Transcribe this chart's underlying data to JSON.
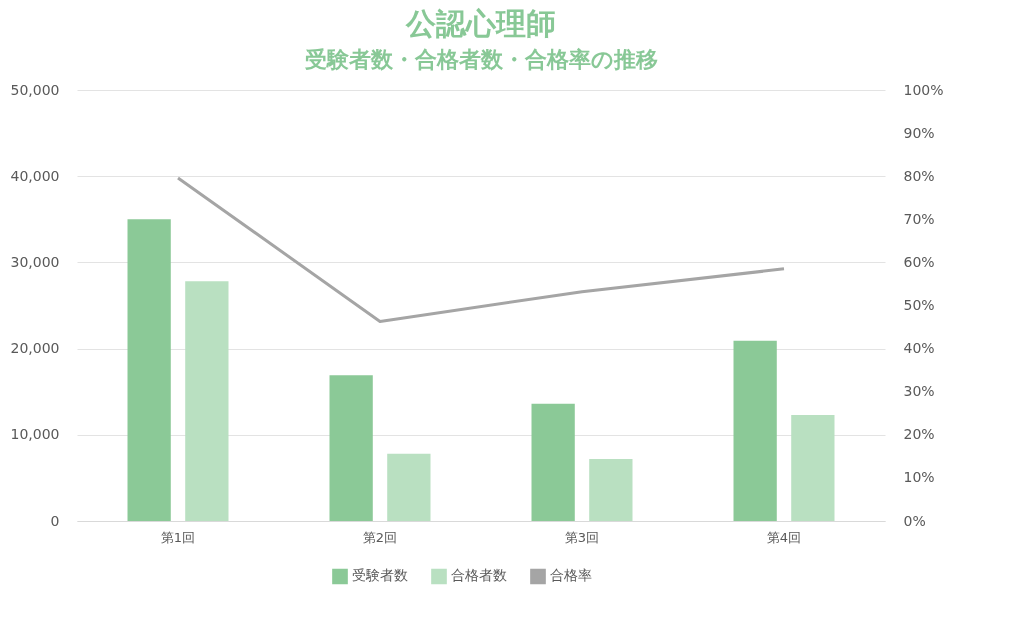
{
  "chart_data": {
    "type": "bar",
    "title": "公認心理師",
    "subtitle": "受験者数・合格者数・合格率の推移",
    "categories": [
      "第1回",
      "第2回",
      "第3回",
      "第4回"
    ],
    "series": [
      {
        "name": "受験者数",
        "color": "#8bc997",
        "values": [
          35000,
          16900,
          13600,
          20900
        ]
      },
      {
        "name": "合格者数",
        "color": "#b9e0c1",
        "values": [
          27800,
          7800,
          7200,
          12300
        ]
      },
      {
        "name": "合格率",
        "type": "line",
        "axis": "y2",
        "color": "#a5a5a5",
        "values": [
          79.6,
          46.3,
          53.2,
          58.5
        ]
      }
    ],
    "ylim": [
      0,
      50000
    ],
    "yticks": [
      {
        "value": 0,
        "label": "0"
      },
      {
        "value": 10000,
        "label": "10,000"
      },
      {
        "value": 20000,
        "label": "20,000"
      },
      {
        "value": 30000,
        "label": "30,000"
      },
      {
        "value": 40000,
        "label": "40,000"
      },
      {
        "value": 50000,
        "label": "50,000"
      }
    ],
    "y2lim": [
      0,
      100
    ],
    "y2ticks": [
      {
        "value": 0,
        "label": "0%"
      },
      {
        "value": 10,
        "label": "10%"
      },
      {
        "value": 20,
        "label": "20%"
      },
      {
        "value": 30,
        "label": "30%"
      },
      {
        "value": 40,
        "label": "40%"
      },
      {
        "value": 50,
        "label": "50%"
      },
      {
        "value": 60,
        "label": "60%"
      },
      {
        "value": 70,
        "label": "70%"
      },
      {
        "value": 80,
        "label": "80%"
      },
      {
        "value": 90,
        "label": "90%"
      },
      {
        "value": 100,
        "label": "100%"
      }
    ],
    "grid": "y",
    "legend": "bottom"
  }
}
